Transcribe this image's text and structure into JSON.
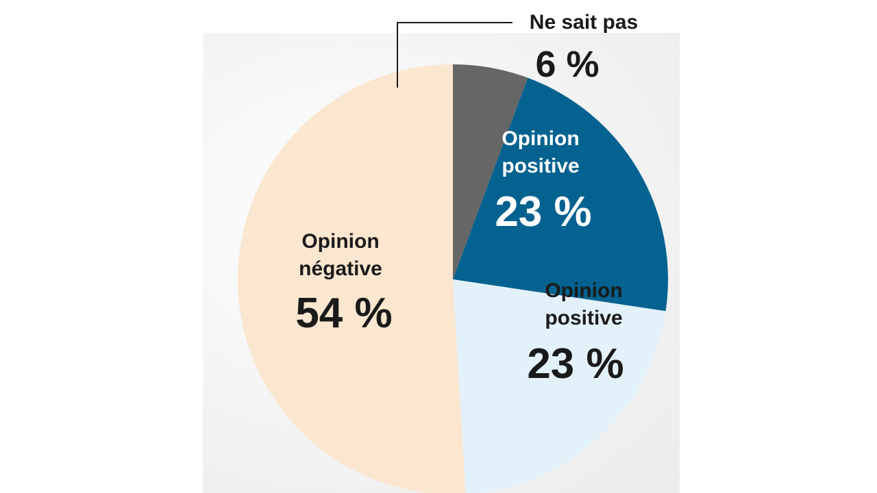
{
  "chart_data": {
    "type": "pie",
    "title": "",
    "slices": [
      {
        "label": "Ne sait pas",
        "label_lines": [
          "Ne sait pas"
        ],
        "value": 6,
        "value_label": "6 %",
        "color": "#666666",
        "text_color": "#1a1a1a"
      },
      {
        "label": "Opinion positive",
        "label_lines": [
          "Opinion",
          "positive"
        ],
        "value": 23,
        "value_label": "23 %",
        "color": "#03628f",
        "text_color": "#ffffff"
      },
      {
        "label": "Opinion positive",
        "label_lines": [
          "Opinion",
          "positive"
        ],
        "value": 23,
        "value_label": "23 %",
        "color": "#e3f1fb",
        "text_color": "#1a1a1a"
      },
      {
        "label": "Opinion négative",
        "label_lines": [
          "Opinion",
          "négative"
        ],
        "value": 54,
        "value_label": "54 %",
        "color": "#fbe6cf",
        "text_color": "#1a1a1a"
      }
    ],
    "start": "12 o'clock",
    "direction": "clockwise",
    "legend": "none"
  }
}
